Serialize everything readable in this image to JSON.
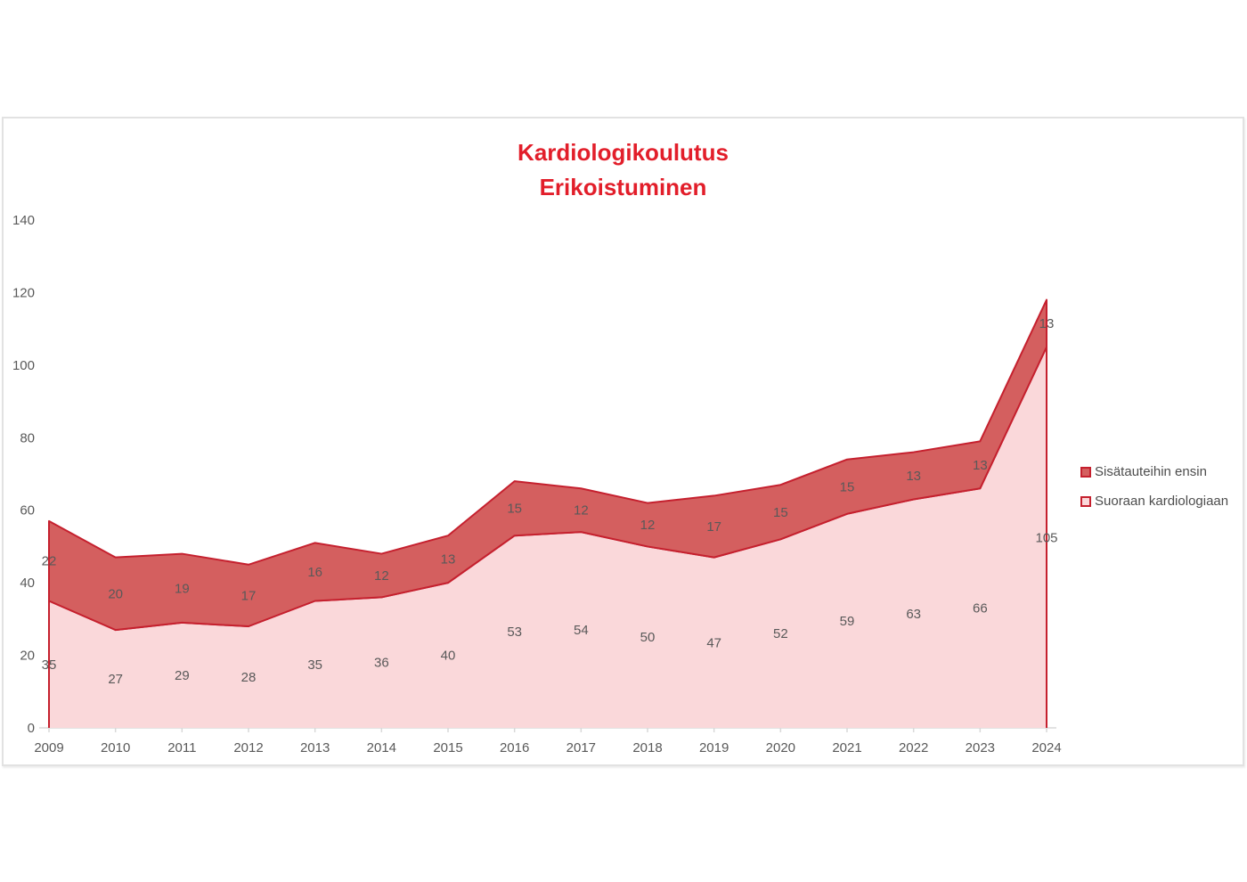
{
  "title": {
    "line1": "Kardiologikoulutus",
    "line2": "Erikoistuminen",
    "color": "#e21e2a"
  },
  "chart_data": {
    "type": "area",
    "stacked": true,
    "title": "Kardiologikoulutus Erikoistuminen",
    "xlabel": "",
    "ylabel": "",
    "categories": [
      "2009",
      "2010",
      "2011",
      "2012",
      "2013",
      "2014",
      "2015",
      "2016",
      "2017",
      "2018",
      "2019",
      "2020",
      "2021",
      "2022",
      "2023",
      "2024"
    ],
    "series": [
      {
        "name": "Suoraan kardiologiaan",
        "values": [
          35,
          27,
          29,
          28,
          35,
          36,
          40,
          53,
          54,
          50,
          47,
          52,
          59,
          63,
          66,
          105
        ],
        "fill": "#fad8da",
        "stroke": "#c5202e"
      },
      {
        "name": "Sisätauteihin ensin",
        "values": [
          22,
          20,
          19,
          17,
          16,
          12,
          13,
          15,
          12,
          12,
          17,
          15,
          15,
          13,
          13,
          13
        ],
        "fill": "#d45f5f",
        "stroke": "#c5202e"
      }
    ],
    "y_ticks": [
      0,
      20,
      40,
      60,
      80,
      100,
      120,
      140
    ],
    "ylim": [
      0,
      140
    ],
    "grid": false,
    "legend_position": "right",
    "data_labels": true,
    "label_color": "#595959",
    "axis_color": "#d9d9d9",
    "legend": [
      {
        "label": "Sisätauteihin ensin",
        "fill": "#d45f5f",
        "border": "#c5202e"
      },
      {
        "label": "Suoraan kardiologiaan",
        "fill": "#fad8da",
        "border": "#c5202e"
      }
    ]
  }
}
